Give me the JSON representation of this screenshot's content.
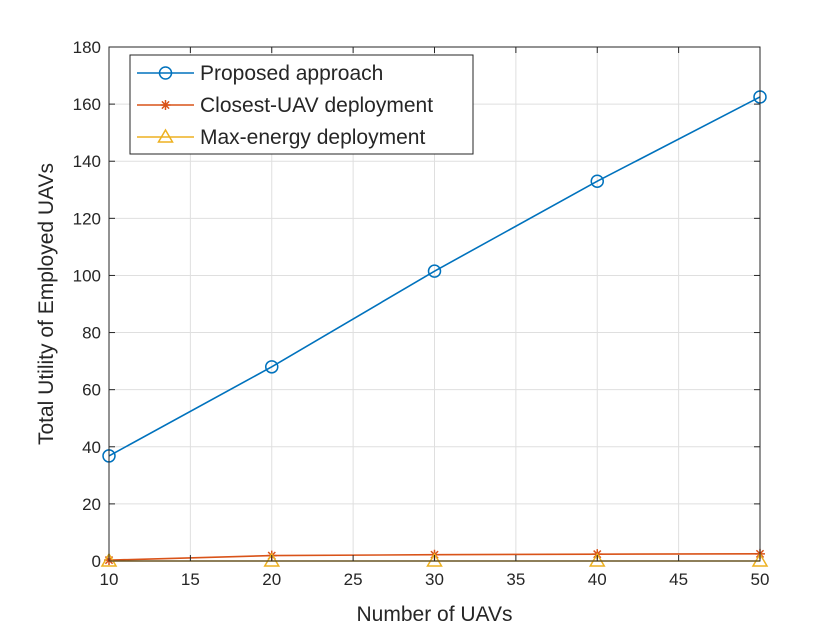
{
  "chart_data": {
    "type": "line",
    "xlabel": "Number of UAVs",
    "ylabel": "Total Utility of Employed UAVs",
    "xlim": [
      10,
      50
    ],
    "ylim": [
      0,
      180
    ],
    "xticks": [
      10,
      15,
      20,
      25,
      30,
      35,
      40,
      45,
      50
    ],
    "yticks": [
      0,
      20,
      40,
      60,
      80,
      100,
      120,
      140,
      160,
      180
    ],
    "grid": true,
    "legend_position": "top-left",
    "x": [
      10,
      20,
      30,
      40,
      50
    ],
    "series": [
      {
        "name": "Proposed approach",
        "values": [
          36.8,
          68,
          101.5,
          133,
          162.5
        ],
        "color": "#0072BD",
        "marker": "circle"
      },
      {
        "name": "Closest-UAV deployment",
        "values": [
          0.3,
          1.9,
          2.2,
          2.4,
          2.5
        ],
        "color": "#D95319",
        "marker": "asterisk"
      },
      {
        "name": "Max-energy deployment",
        "values": [
          0,
          0,
          0,
          0,
          0
        ],
        "color": "#EDB120",
        "marker": "triangle"
      }
    ]
  }
}
